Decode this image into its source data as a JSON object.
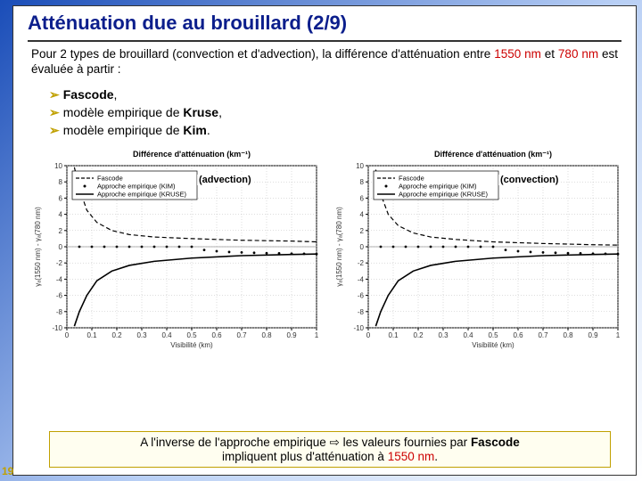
{
  "pageNumber": "19",
  "title": "Atténuation due au brouillard (2/9)",
  "intro": {
    "prefix": "Pour 2 types de brouillard (convection et d'advection), la différence d'atténuation entre ",
    "w1": "1550 nm",
    "mid": " et ",
    "w2": "780 nm",
    "suffix": " est évaluée à partir :"
  },
  "bullets": [
    {
      "prefix": "",
      "bold": "Fascode",
      "suffix": ","
    },
    {
      "prefix": "modèle empirique de ",
      "bold": "Kruse",
      "suffix": ","
    },
    {
      "prefix": "modèle empirique de ",
      "bold": "Kim",
      "suffix": "."
    }
  ],
  "chartCommon": {
    "ytitle": "Différence d'atténuation (km⁻¹)",
    "ylabel": "γₐ(1550 nm) - γₐ(780 nm)",
    "xlabel": "Visibilité (km)",
    "xlim": [
      0,
      1
    ],
    "ylim": [
      -10,
      10
    ],
    "xticks": [
      0,
      0.1,
      0.2,
      0.3,
      0.4,
      0.5,
      0.6,
      0.7,
      0.8,
      0.9,
      1
    ],
    "yticks": [
      -10,
      -8,
      -6,
      -4,
      -2,
      0,
      2,
      4,
      6,
      8,
      10
    ],
    "gridColor": "#bbb",
    "axisColor": "#000",
    "bgColor": "#fff",
    "legend": [
      {
        "label": "Fascode",
        "marker": "dash",
        "color": "#000"
      },
      {
        "label": "Approche empirique (KIM)",
        "marker": "dot",
        "color": "#000"
      },
      {
        "label": "Approche empirique (KRUSE)",
        "marker": "solid",
        "color": "#000"
      }
    ]
  },
  "chartLeft": {
    "overlay": "(advection)",
    "fascode": [
      [
        0.03,
        9.8
      ],
      [
        0.05,
        7.2
      ],
      [
        0.08,
        4.5
      ],
      [
        0.12,
        3.0
      ],
      [
        0.18,
        2.0
      ],
      [
        0.25,
        1.5
      ],
      [
        0.35,
        1.2
      ],
      [
        0.5,
        1.0
      ],
      [
        0.7,
        0.8
      ],
      [
        0.9,
        0.7
      ],
      [
        1.0,
        0.6
      ]
    ],
    "kim": [
      [
        0.05,
        0
      ],
      [
        0.1,
        0
      ],
      [
        0.15,
        0
      ],
      [
        0.2,
        0
      ],
      [
        0.25,
        0
      ],
      [
        0.3,
        0
      ],
      [
        0.35,
        0
      ],
      [
        0.4,
        0
      ],
      [
        0.45,
        0
      ],
      [
        0.5,
        0
      ],
      [
        0.55,
        -0.4
      ],
      [
        0.6,
        -0.55
      ],
      [
        0.65,
        -0.65
      ],
      [
        0.7,
        -0.7
      ],
      [
        0.75,
        -0.75
      ],
      [
        0.8,
        -0.8
      ],
      [
        0.85,
        -0.82
      ],
      [
        0.9,
        -0.85
      ],
      [
        0.95,
        -0.87
      ],
      [
        1.0,
        -0.9
      ]
    ],
    "kruse": [
      [
        0.03,
        -9.8
      ],
      [
        0.05,
        -8.0
      ],
      [
        0.08,
        -6.0
      ],
      [
        0.12,
        -4.2
      ],
      [
        0.18,
        -3.0
      ],
      [
        0.25,
        -2.3
      ],
      [
        0.35,
        -1.8
      ],
      [
        0.5,
        -1.4
      ],
      [
        0.7,
        -1.1
      ],
      [
        0.9,
        -0.95
      ],
      [
        1.0,
        -0.9
      ]
    ]
  },
  "chartRight": {
    "overlay": "(convection)",
    "fascode": [
      [
        0.03,
        9.5
      ],
      [
        0.05,
        6.5
      ],
      [
        0.08,
        4.0
      ],
      [
        0.12,
        2.6
      ],
      [
        0.18,
        1.7
      ],
      [
        0.25,
        1.2
      ],
      [
        0.35,
        0.9
      ],
      [
        0.5,
        0.6
      ],
      [
        0.7,
        0.4
      ],
      [
        0.9,
        0.25
      ],
      [
        1.0,
        0.2
      ]
    ],
    "kim": [
      [
        0.05,
        0
      ],
      [
        0.1,
        0
      ],
      [
        0.15,
        0
      ],
      [
        0.2,
        0
      ],
      [
        0.25,
        0
      ],
      [
        0.3,
        0
      ],
      [
        0.35,
        0
      ],
      [
        0.4,
        0
      ],
      [
        0.45,
        0
      ],
      [
        0.5,
        0
      ],
      [
        0.55,
        -0.4
      ],
      [
        0.6,
        -0.55
      ],
      [
        0.65,
        -0.65
      ],
      [
        0.7,
        -0.7
      ],
      [
        0.75,
        -0.75
      ],
      [
        0.8,
        -0.8
      ],
      [
        0.85,
        -0.82
      ],
      [
        0.9,
        -0.85
      ],
      [
        0.95,
        -0.87
      ],
      [
        1.0,
        -0.9
      ]
    ],
    "kruse": [
      [
        0.03,
        -9.8
      ],
      [
        0.05,
        -8.0
      ],
      [
        0.08,
        -6.0
      ],
      [
        0.12,
        -4.2
      ],
      [
        0.18,
        -3.0
      ],
      [
        0.25,
        -2.3
      ],
      [
        0.35,
        -1.8
      ],
      [
        0.5,
        -1.4
      ],
      [
        0.7,
        -1.1
      ],
      [
        0.9,
        -0.95
      ],
      [
        1.0,
        -0.9
      ]
    ]
  },
  "conclusion": {
    "l1a": "A l'inverse de l'approche empirique ",
    "l1arrow": "⇨",
    "l1b": " les valeurs fournies par ",
    "l1bold": "Fascode",
    "l2a": "impliquent plus d'atténuation à ",
    "l2red": "1550 nm",
    "l2b": "."
  }
}
